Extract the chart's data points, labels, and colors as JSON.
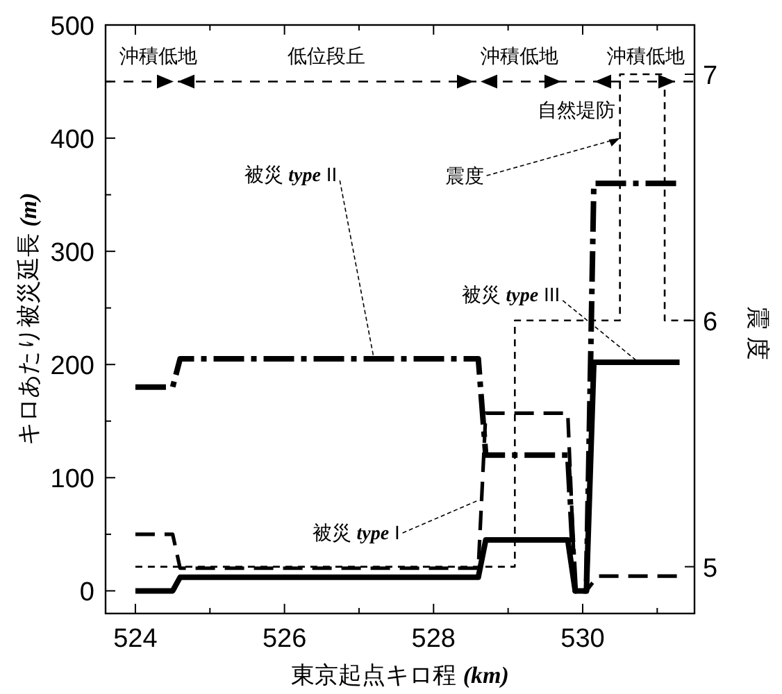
{
  "chart_data": {
    "type": "line",
    "xlabel": "東京起点キロ程 *(km)*",
    "ylabel": "キロあたり被災延長 *(m)*",
    "y2label": "震 度",
    "xlim": [
      523.6,
      531.5
    ],
    "ylim": [
      -20,
      500
    ],
    "y2lim": [
      4.81,
      7.2
    ],
    "xticks": [
      524,
      {
        "value": 525,
        "label": null
      },
      526,
      {
        "value": 527,
        "label": null
      },
      528,
      {
        "value": 529,
        "label": null
      },
      530,
      {
        "value": 531,
        "label": null
      }
    ],
    "yticks": [
      0,
      {
        "value": 50,
        "label": null
      },
      100,
      {
        "value": 150,
        "label": null
      },
      200,
      {
        "value": 250,
        "label": null
      },
      300,
      {
        "value": 350,
        "label": null
      },
      400,
      {
        "value": 450,
        "label": null
      },
      500
    ],
    "y2ticks": [
      5,
      6,
      7
    ],
    "grid": false,
    "marker": "none",
    "series": [
      {
        "color": "#000000",
        "line_style": "solid",
        "x": [
          524,
          524.5,
          524.6,
          528.6,
          528.7,
          529.8,
          529.9,
          530.05,
          530.15,
          531.3
        ],
        "values": [
          0,
          0,
          12,
          12,
          45,
          45,
          0,
          0,
          202,
          202
        ]
      },
      {
        "color": "#000000",
        "line_style": "dashed",
        "x": [
          524,
          524.5,
          524.6,
          528.6,
          528.7,
          529.8,
          529.9,
          530.05,
          530.15,
          531.3
        ],
        "values": [
          180,
          180,
          205,
          205,
          120,
          120,
          0,
          0,
          360,
          360
        ]
      },
      {
        "color": "#000000",
        "line_style": "dashed",
        "x": [
          524,
          524.5,
          524.6,
          528.6,
          528.7,
          529.8,
          529.9,
          530.05,
          530.2,
          531.3
        ],
        "values": [
          50,
          50,
          20,
          20,
          157,
          157,
          0,
          0,
          13,
          13
        ]
      },
      {
        "color": "#000000",
        "line_style": "dashed",
        "axis": "y2",
        "x": [
          524,
          529.09,
          529.09,
          530.5,
          530.5,
          531.1,
          531.1,
          531.5
        ],
        "values": [
          5,
          5,
          6,
          6,
          7,
          7,
          6,
          6
        ]
      }
    ],
    "ref_lines": [
      {
        "axis": "y",
        "value": 450,
        "line_style": "dashed"
      }
    ],
    "annotations": [
      {
        "text": "震度",
        "x": 530.5,
        "y": 400
      },
      {
        "text": "被災 *type* II",
        "x": 527.2,
        "y": 205
      },
      {
        "text": "被災 *type* I",
        "x": 528.6,
        "y": 80
      },
      {
        "text": "被災 *type* III",
        "x": 530.75,
        "y": 202
      },
      "自然堤防",
      "沖積低地",
      "低位段丘",
      "沖積低地",
      "沖積低地"
    ]
  }
}
